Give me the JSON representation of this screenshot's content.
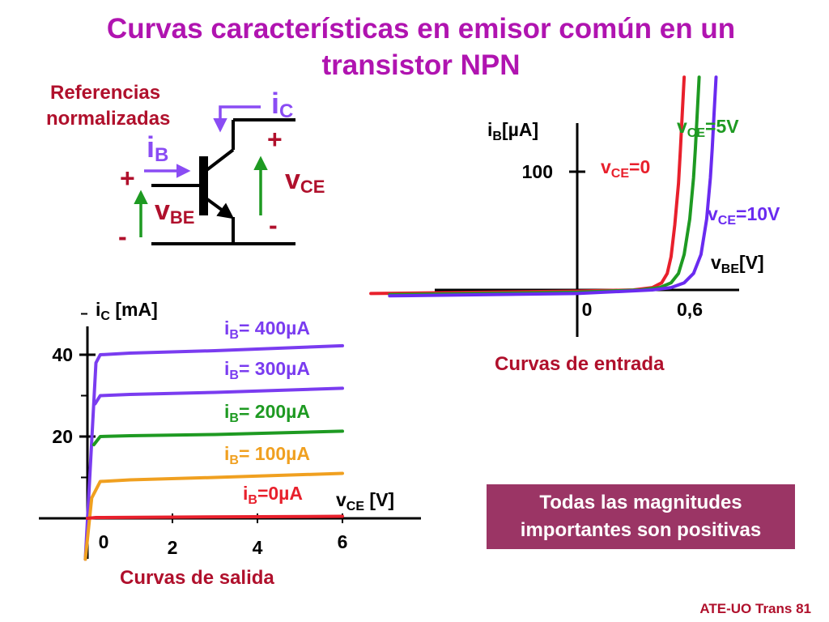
{
  "title": {
    "line1": "Curvas características en emisor común en un",
    "line2": "transistor NPN"
  },
  "colors": {
    "title": "#b014b0",
    "dark_red": "#b0102c",
    "violet": "#7a3cf0",
    "red": "#e8202c",
    "green": "#1e9a22",
    "orange": "#f0a020",
    "box": "#9b3565"
  },
  "references": {
    "line1": "Referencias",
    "line2": "normalizadas"
  },
  "symbol": {
    "ic": {
      "main": "i",
      "sub": "C"
    },
    "ib": {
      "main": "i",
      "sub": "B"
    },
    "vce": {
      "main": "v",
      "sub": "CE"
    },
    "vbe": {
      "main": "v",
      "sub": "BE"
    },
    "plus": "+",
    "minus": "-"
  },
  "chart_data": [
    {
      "type": "line",
      "name": "input",
      "caption": "Curvas de entrada",
      "xlabel": {
        "main": "v",
        "sub": "BE",
        "tail": "[V]"
      },
      "ylabel": {
        "main": "i",
        "sub": "B",
        "tail": "[µA]"
      },
      "x_ticks": [
        {
          "value": 0,
          "label": "0"
        },
        {
          "value": 0.6,
          "label": "0,6"
        }
      ],
      "y_ticks": [
        {
          "value": 100,
          "label": "100"
        }
      ],
      "series": [
        {
          "key": "vce0",
          "label": {
            "main": "v",
            "sub": "CE",
            "tail": "=0"
          },
          "color": "#e8202c",
          "points": [
            [
              -1.1,
              -3
            ],
            [
              0,
              -1
            ],
            [
              0.3,
              0
            ],
            [
              0.4,
              2
            ],
            [
              0.45,
              6
            ],
            [
              0.48,
              14
            ],
            [
              0.5,
              28
            ],
            [
              0.52,
              55
            ],
            [
              0.54,
              90
            ],
            [
              0.55,
              118
            ],
            [
              0.56,
              150
            ],
            [
              0.57,
              180
            ]
          ]
        },
        {
          "key": "vce5",
          "label": {
            "main": "v",
            "sub": "CE",
            "tail": "=5V"
          },
          "color": "#1e9a22",
          "points": [
            [
              -1.0,
              -4
            ],
            [
              0,
              -2
            ],
            [
              0.34,
              0
            ],
            [
              0.44,
              2
            ],
            [
              0.5,
              6
            ],
            [
              0.54,
              14
            ],
            [
              0.57,
              30
            ],
            [
              0.6,
              60
            ],
            [
              0.62,
              95
            ],
            [
              0.63,
              120
            ],
            [
              0.64,
              150
            ],
            [
              0.65,
              180
            ]
          ]
        },
        {
          "key": "vce10",
          "label": {
            "main": "v",
            "sub": "CE",
            "tail": "=10V"
          },
          "color": "#6a2bf0",
          "points": [
            [
              -1.0,
              -5
            ],
            [
              0,
              -3
            ],
            [
              0.4,
              0
            ],
            [
              0.5,
              2
            ],
            [
              0.57,
              6
            ],
            [
              0.62,
              14
            ],
            [
              0.66,
              30
            ],
            [
              0.69,
              60
            ],
            [
              0.71,
              95
            ],
            [
              0.72,
              120
            ],
            [
              0.73,
              150
            ],
            [
              0.74,
              180
            ]
          ]
        }
      ]
    },
    {
      "type": "line",
      "name": "output",
      "caption": "Curvas de salida",
      "xlabel": {
        "main": "v",
        "sub": "CE",
        "tail": " [V]"
      },
      "ylabel": {
        "main": "i",
        "sub": "C",
        "tail": " [mA]"
      },
      "x_ticks": [
        {
          "value": 0,
          "label": "0"
        },
        {
          "value": 2,
          "label": "2"
        },
        {
          "value": 4,
          "label": "4"
        },
        {
          "value": 6,
          "label": "6"
        }
      ],
      "y_ticks": [
        {
          "value": 20,
          "label": "20"
        },
        {
          "value": 40,
          "label": "40"
        }
      ],
      "y_minor": [
        10,
        30,
        50
      ],
      "series": [
        {
          "key": "ib400",
          "label": {
            "main": "i",
            "sub": "B",
            "tail": "= 400µA"
          },
          "color": "#7a3cf0",
          "points": [
            [
              -0.05,
              -10
            ],
            [
              0.2,
              38
            ],
            [
              0.3,
              40
            ],
            [
              1,
              40.4
            ],
            [
              3,
              41
            ],
            [
              6,
              42.2
            ]
          ]
        },
        {
          "key": "ib300",
          "label": {
            "main": "i",
            "sub": "B",
            "tail": "= 300µA"
          },
          "color": "#7a3cf0",
          "points": [
            [
              0.18,
              28
            ],
            [
              0.3,
              30
            ],
            [
              1,
              30.3
            ],
            [
              3,
              30.8
            ],
            [
              6,
              31.8
            ]
          ]
        },
        {
          "key": "ib200",
          "label": {
            "main": "i",
            "sub": "B",
            "tail": "= 200µA"
          },
          "color": "#1e9a22",
          "points": [
            [
              0.15,
              18
            ],
            [
              0.3,
              20
            ],
            [
              1,
              20.2
            ],
            [
              3,
              20.5
            ],
            [
              6,
              21.3
            ]
          ]
        },
        {
          "key": "ib100",
          "label": {
            "main": "i",
            "sub": "B",
            "tail": "= 100µA"
          },
          "color": "#f0a020",
          "points": [
            [
              -0.05,
              -10
            ],
            [
              0.1,
              5
            ],
            [
              0.3,
              9
            ],
            [
              1,
              9.4
            ],
            [
              3,
              10
            ],
            [
              6,
              11
            ]
          ]
        },
        {
          "key": "ib0",
          "label": {
            "main": "i",
            "sub": "B",
            "tail": "=0µA"
          },
          "color": "#e8202c",
          "points": [
            [
              0,
              0
            ],
            [
              0.2,
              0.2
            ],
            [
              2,
              0.3
            ],
            [
              6,
              0.5
            ]
          ]
        }
      ]
    }
  ],
  "note": {
    "line1": "Todas las magnitudes",
    "line2": "importantes son positivas"
  },
  "footer": "ATE-UO Trans 81"
}
